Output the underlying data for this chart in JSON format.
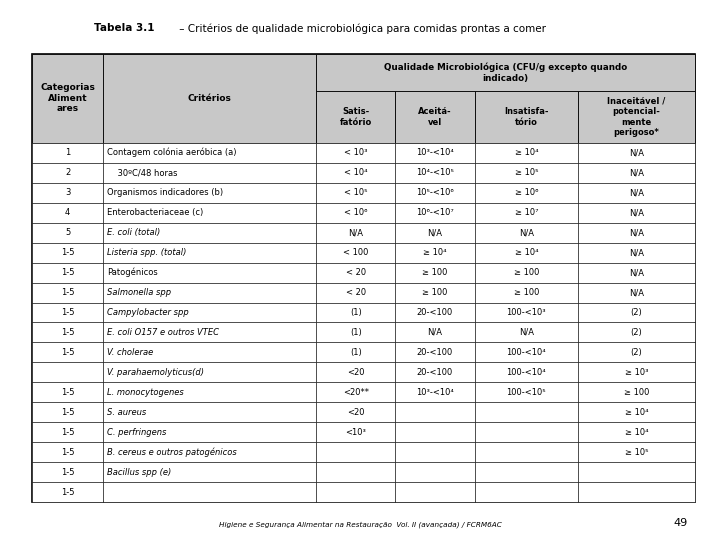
{
  "title_bold": "Tabela 3.1",
  "title_rest": " – Critérios de qualidade microbiológica para comidas prontas a comer",
  "footer": "Higiene e Segurança Alimentar na Restauração  Vol. II (avançada) / FCRM6AC",
  "page_number": "49",
  "header_bg": "#c8c8c8",
  "white_bg": "#ffffff",
  "col1_header": "Categorias\nAliment\nares",
  "col2_header": "Critérios",
  "col3_header": "Qualidade Microbiológica (CFU/g excepto quando\nindicado)",
  "col3a_header": "Satis-\nfatório",
  "col3b_header": "Aceitá-\nvel",
  "col3c_header": "Insatisfa-\ntório",
  "col3d_header": "Inaceitável /\npotencial-\nmente\nperigoso*",
  "col1_lines": [
    "1",
    "2",
    "3",
    "4",
    "5",
    "1-5",
    "1-5",
    "1-5",
    "1-5",
    "1-5",
    "1-5",
    "",
    "1-5",
    "1-5",
    "1-5",
    "1-5",
    "1-5",
    "1-5"
  ],
  "col2_lines": [
    [
      "normal",
      "Contagem colónia aeróbica (a)"
    ],
    [
      "normal",
      "    30ºC/48 horas"
    ],
    [
      "normal",
      "Organismos indicadores (b)"
    ],
    [
      "normal",
      "Enterobacteriaceae (c)"
    ],
    [
      "italic",
      "E. coli (total)"
    ],
    [
      "italic",
      "Listeria spp. (total)"
    ],
    [
      "normal",
      "Patogénicos"
    ],
    [
      "italic",
      "Salmonella spp"
    ],
    [
      "italic",
      "Campylobacter spp"
    ],
    [
      "italic",
      "E. coli O157 e outros VTEC"
    ],
    [
      "italic",
      "V. cholerae"
    ],
    [
      "italic",
      "V. parahaemolyticus(d)"
    ],
    [
      "italic",
      "L. monocytogenes"
    ],
    [
      "italic",
      "S. aureus"
    ],
    [
      "italic",
      "C. perfringens"
    ],
    [
      "italic",
      "B. cereus e outros patogénicos"
    ],
    [
      "italic",
      "Bacillus spp (e)"
    ],
    [
      "normal",
      ""
    ]
  ],
  "col3a_lines": [
    "< 10³",
    "< 10⁴",
    "< 10⁵",
    "< 10⁶",
    "N/A",
    "< 100",
    "< 20",
    "< 20",
    "(1)",
    "(1)",
    "(1)",
    "<20",
    "<20**",
    "<20",
    "<10³",
    "",
    "",
    ""
  ],
  "col3b_lines": [
    "10³-<10⁴",
    "10⁴-<10⁵",
    "10⁵-<10⁶",
    "10⁶-<10⁷",
    "N/A",
    "≥ 10⁴",
    "≥ 100",
    "≥ 100",
    "20-<100",
    "N/A",
    "20-<100",
    "20-<100",
    "10³-<10⁴",
    "",
    "",
    "",
    "",
    ""
  ],
  "col3c_lines": [
    "≥ 10⁴",
    "≥ 10⁵",
    "≥ 10⁶",
    "≥ 10⁷",
    "N/A",
    "≥ 10⁴",
    "≥ 100",
    "≥ 100",
    "100-<10³",
    "N/A",
    "100-<10⁴",
    "100-<10⁴",
    "100-<10⁵",
    "",
    "",
    "",
    "",
    ""
  ],
  "col3d_lines": [
    "N/A",
    "N/A",
    "N/A",
    "N/A",
    "N/A",
    "N/A",
    "N/A",
    "N/A",
    "(2)",
    "(2)",
    "(2)",
    "≥ 10³",
    "≥ 100",
    "≥ 10⁴",
    "≥ 10⁴",
    "≥ 10⁵",
    "",
    ""
  ]
}
